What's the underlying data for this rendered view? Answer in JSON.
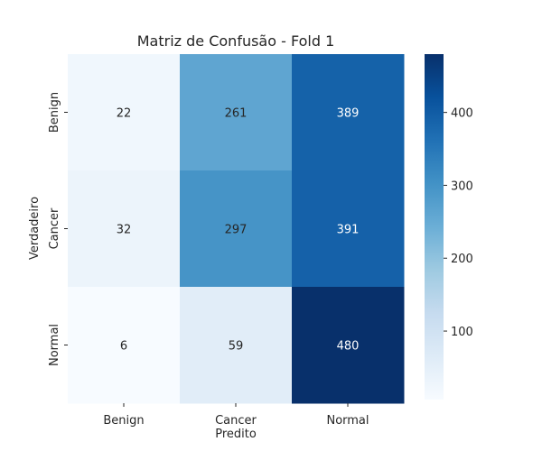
{
  "chart_data": {
    "type": "heatmap",
    "title": "Matriz de Confusão - Fold 1",
    "xlabel": "Predito",
    "ylabel": "Verdadeiro",
    "x_categories": [
      "Benign",
      "Cancer",
      "Normal"
    ],
    "y_categories": [
      "Benign",
      "Cancer",
      "Normal"
    ],
    "values": [
      [
        22,
        261,
        389
      ],
      [
        32,
        297,
        391
      ],
      [
        6,
        59,
        480
      ]
    ],
    "colormap": "Blues",
    "colormap_stops": [
      "#f7fbff",
      "#deebf7",
      "#c6dbef",
      "#9ecae1",
      "#6baed6",
      "#4292c6",
      "#2171b5",
      "#08519c",
      "#08306b"
    ],
    "vmin": 6,
    "vmax": 480,
    "colorbar": {
      "ticks": [
        100,
        200,
        300,
        400
      ],
      "tick_labels": [
        "100",
        "200",
        "300",
        "400"
      ]
    },
    "annotation_light_color": "#262626",
    "annotation_dark_color": "#ffffff"
  }
}
